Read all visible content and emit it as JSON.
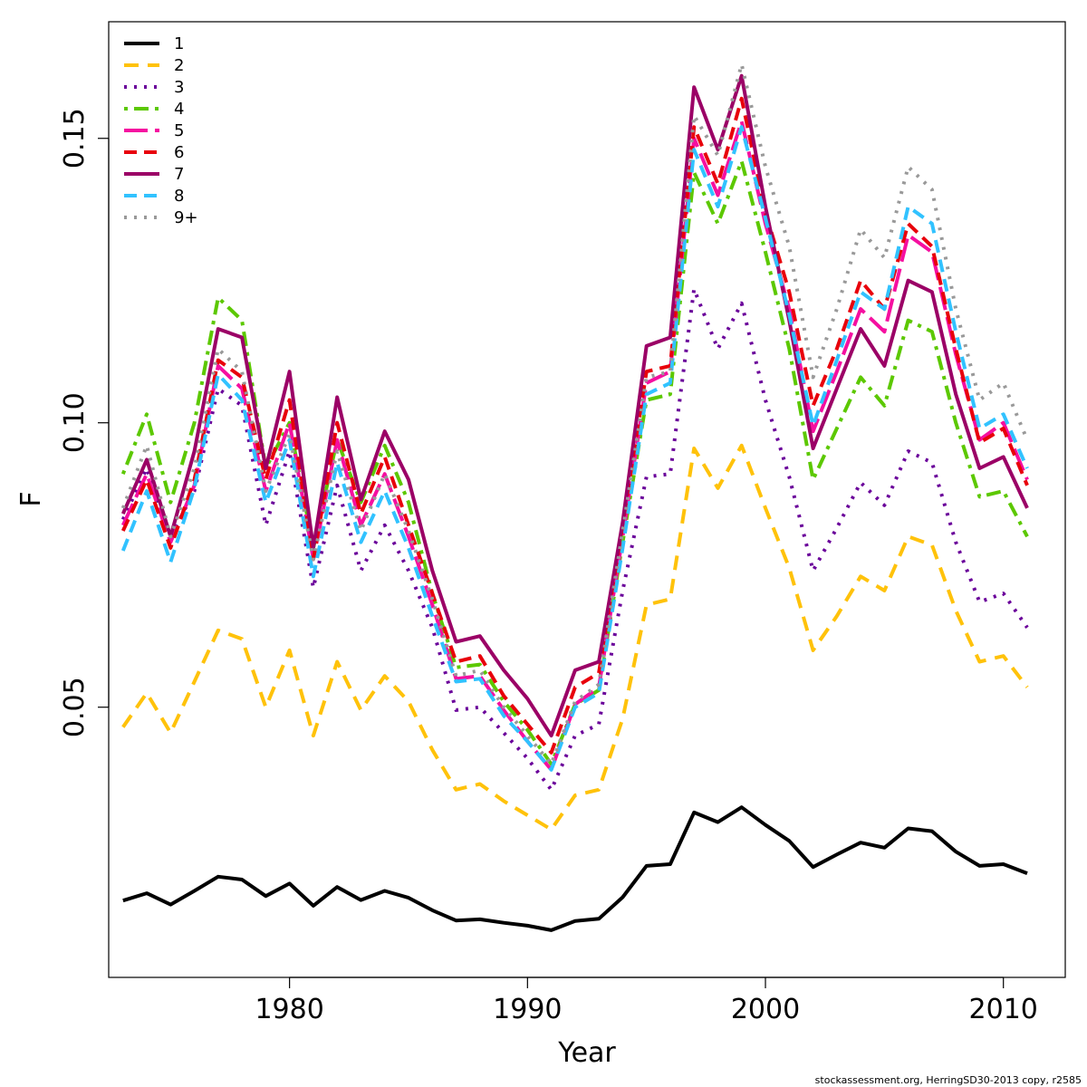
{
  "chart_data": {
    "type": "line",
    "title": "",
    "xlabel": "Year",
    "ylabel": "F",
    "xlim": [
      1972.4,
      2012.6
    ],
    "ylim": [
      0.0025,
      0.1705
    ],
    "x_ticks": [
      1980,
      1990,
      2000,
      2010
    ],
    "y_ticks": [
      0.05,
      0.1,
      0.15
    ],
    "y_tick_labels": [
      "0.05",
      "0.10",
      "0.15"
    ],
    "grid": false,
    "legend_position": "top-left",
    "x": [
      1973,
      1974,
      1975,
      1976,
      1977,
      1978,
      1979,
      1980,
      1981,
      1982,
      1983,
      1984,
      1985,
      1986,
      1987,
      1988,
      1989,
      1990,
      1991,
      1992,
      1993,
      1994,
      1995,
      1996,
      1997,
      1998,
      1999,
      2000,
      2001,
      2002,
      2003,
      2004,
      2005,
      2006,
      2007,
      2008,
      2009,
      2010,
      2011
    ],
    "series": [
      {
        "name": "1",
        "color": "#000000",
        "dash": "solid",
        "width": 4,
        "values": [
          0.016,
          0.0173,
          0.0153,
          0.0177,
          0.0202,
          0.0197,
          0.0168,
          0.019,
          0.0151,
          0.0184,
          0.0161,
          0.0177,
          0.0165,
          0.0143,
          0.0125,
          0.0127,
          0.0121,
          0.0116,
          0.0108,
          0.0124,
          0.0128,
          0.0166,
          0.0221,
          0.0224,
          0.0315,
          0.0298,
          0.0324,
          0.0293,
          0.0265,
          0.0219,
          0.0241,
          0.0262,
          0.0253,
          0.0287,
          0.0282,
          0.0246,
          0.0221,
          0.0224,
          0.0208
        ]
      },
      {
        "name": "2",
        "color": "#FFC20A",
        "dash": "long-dash",
        "width": 4,
        "values": [
          0.0465,
          0.0525,
          0.0455,
          0.0545,
          0.0635,
          0.062,
          0.05,
          0.06,
          0.045,
          0.058,
          0.0495,
          0.0555,
          0.051,
          0.0425,
          0.0355,
          0.0365,
          0.0335,
          0.031,
          0.0285,
          0.0345,
          0.0355,
          0.048,
          0.068,
          0.069,
          0.0955,
          0.0885,
          0.096,
          0.085,
          0.0745,
          0.06,
          0.066,
          0.073,
          0.0705,
          0.08,
          0.0785,
          0.067,
          0.058,
          0.059,
          0.0535
        ]
      },
      {
        "name": "3",
        "color": "#6A009A",
        "dash": "dotted",
        "width": 4,
        "values": [
          0.083,
          0.092,
          0.08,
          0.088,
          0.106,
          0.103,
          0.082,
          0.095,
          0.071,
          0.089,
          0.074,
          0.082,
          0.074,
          0.064,
          0.0495,
          0.05,
          0.0455,
          0.041,
          0.0355,
          0.045,
          0.047,
          0.0705,
          0.0905,
          0.091,
          0.1235,
          0.113,
          0.121,
          0.104,
          0.0905,
          0.074,
          0.0815,
          0.0895,
          0.0855,
          0.095,
          0.093,
          0.079,
          0.0685,
          0.07,
          0.064
        ]
      },
      {
        "name": "4",
        "color": "#5CC800",
        "dash": "dot-dash",
        "width": 4,
        "values": [
          0.091,
          0.1015,
          0.086,
          0.1,
          0.122,
          0.118,
          0.092,
          0.1,
          0.078,
          0.097,
          0.086,
          0.096,
          0.086,
          0.07,
          0.057,
          0.0575,
          0.051,
          0.046,
          0.04,
          0.0505,
          0.053,
          0.079,
          0.104,
          0.105,
          0.144,
          0.135,
          0.146,
          0.13,
          0.113,
          0.09,
          0.099,
          0.108,
          0.103,
          0.118,
          0.116,
          0.1,
          0.087,
          0.088,
          0.08
        ]
      },
      {
        "name": "5",
        "color": "#F50FA0",
        "dash": "dash-long",
        "width": 4,
        "values": [
          0.082,
          0.091,
          0.079,
          0.089,
          0.11,
          0.106,
          0.088,
          0.1,
          0.076,
          0.097,
          0.082,
          0.091,
          0.08,
          0.068,
          0.055,
          0.0555,
          0.0495,
          0.044,
          0.039,
          0.0505,
          0.0535,
          0.08,
          0.107,
          0.109,
          0.15,
          0.14,
          0.153,
          0.135,
          0.12,
          0.0985,
          0.109,
          0.12,
          0.116,
          0.133,
          0.13,
          0.112,
          0.097,
          0.1,
          0.09
        ]
      },
      {
        "name": "6",
        "color": "#E8000B",
        "dash": "dashed",
        "width": 4,
        "values": [
          0.081,
          0.09,
          0.078,
          0.09,
          0.111,
          0.108,
          0.09,
          0.104,
          0.076,
          0.1,
          0.084,
          0.094,
          0.082,
          0.07,
          0.058,
          0.059,
          0.052,
          0.047,
          0.042,
          0.0535,
          0.056,
          0.082,
          0.109,
          0.11,
          0.152,
          0.142,
          0.157,
          0.137,
          0.123,
          0.103,
          0.113,
          0.125,
          0.12,
          0.135,
          0.131,
          0.113,
          0.0965,
          0.099,
          0.089
        ]
      },
      {
        "name": "7",
        "color": "#9B0066",
        "dash": "solid",
        "width": 4,
        "values": [
          0.084,
          0.0935,
          0.08,
          0.095,
          0.1165,
          0.115,
          0.092,
          0.109,
          0.078,
          0.1045,
          0.0865,
          0.0985,
          0.09,
          0.074,
          0.0615,
          0.0625,
          0.0565,
          0.0515,
          0.045,
          0.0565,
          0.058,
          0.0825,
          0.1135,
          0.115,
          0.159,
          0.148,
          0.161,
          0.138,
          0.118,
          0.0955,
          0.106,
          0.1165,
          0.11,
          0.125,
          0.123,
          0.105,
          0.092,
          0.094,
          0.085
        ]
      },
      {
        "name": "8",
        "color": "#31C2FF",
        "dash": "dashed",
        "width": 4,
        "values": [
          0.0775,
          0.088,
          0.0755,
          0.0885,
          0.1085,
          0.104,
          0.086,
          0.097,
          0.073,
          0.093,
          0.079,
          0.088,
          0.078,
          0.066,
          0.0545,
          0.055,
          0.0485,
          0.044,
          0.039,
          0.05,
          0.0525,
          0.078,
          0.105,
          0.107,
          0.148,
          0.138,
          0.152,
          0.136,
          0.119,
          0.0995,
          0.111,
          0.123,
          0.12,
          0.138,
          0.135,
          0.116,
          0.099,
          0.1015,
          0.092
        ]
      },
      {
        "name": "9+",
        "color": "#999999",
        "dash": "dotted",
        "width": 4,
        "values": [
          0.085,
          0.096,
          0.08,
          0.092,
          0.113,
          0.109,
          0.088,
          0.098,
          0.076,
          0.095,
          0.081,
          0.091,
          0.081,
          0.069,
          0.0555,
          0.0565,
          0.05,
          0.045,
          0.04,
          0.051,
          0.054,
          0.081,
          0.108,
          0.109,
          0.154,
          0.147,
          0.163,
          0.145,
          0.131,
          0.108,
          0.12,
          0.134,
          0.129,
          0.145,
          0.141,
          0.12,
          0.104,
          0.107,
          0.097
        ]
      }
    ]
  },
  "footer": {
    "credit": "stockassessment.org, HerringSD30-2013 copy, r2585"
  }
}
